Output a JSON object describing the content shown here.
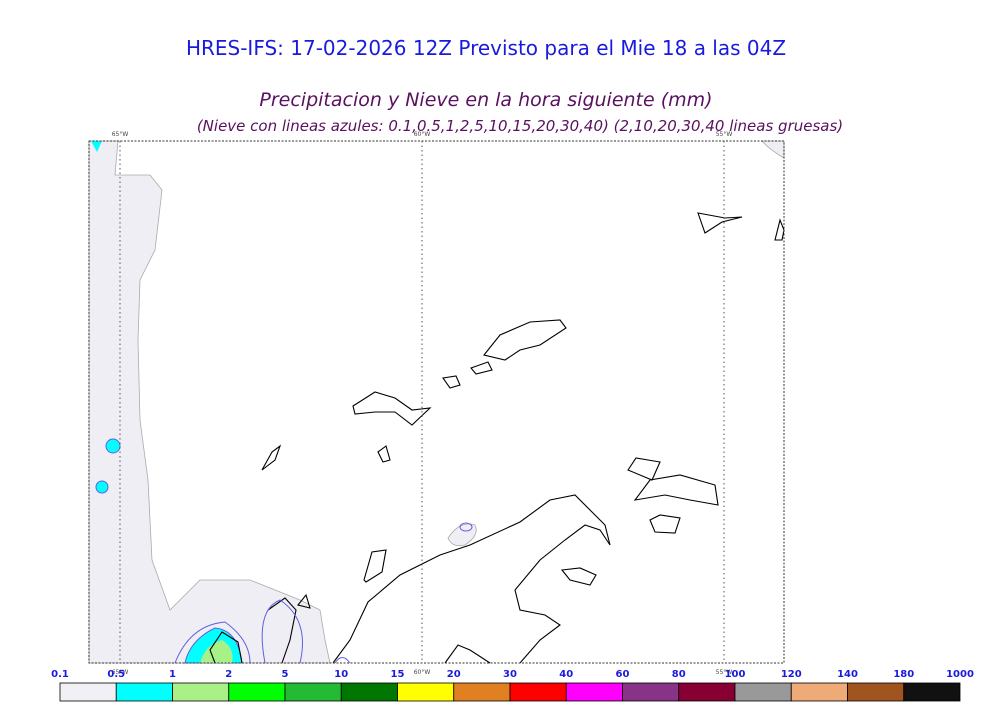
{
  "title": "HRES-IFS: 17-02-2026 12Z Previsto para el Mie 18 a las 04Z",
  "subtitle": "Precipitacion y Nieve en la hora siguiente (mm)",
  "note": "(Nieve con lineas azules: 0.1,0.5,1,2,5,10,15,20,30,40)  (2,10,20,30,40 lineas gruesas)",
  "meridians": [
    "65°W",
    "60°W",
    "55°W"
  ],
  "colorbar": {
    "levels": [
      0.1,
      0.5,
      1,
      2,
      5,
      10,
      15,
      20,
      30,
      40,
      60,
      80,
      100,
      120,
      140,
      180,
      1000
    ],
    "colors": [
      "#f0f0f5",
      "#00ffff",
      "#aaf088",
      "#00ff00",
      "#22bb33",
      "#007700",
      "#ffff00",
      "#e08020",
      "#ff0000",
      "#ff00ff",
      "#883388",
      "#880033",
      "#999999",
      "#eeaa77",
      "#a05520",
      "#111111"
    ]
  }
}
